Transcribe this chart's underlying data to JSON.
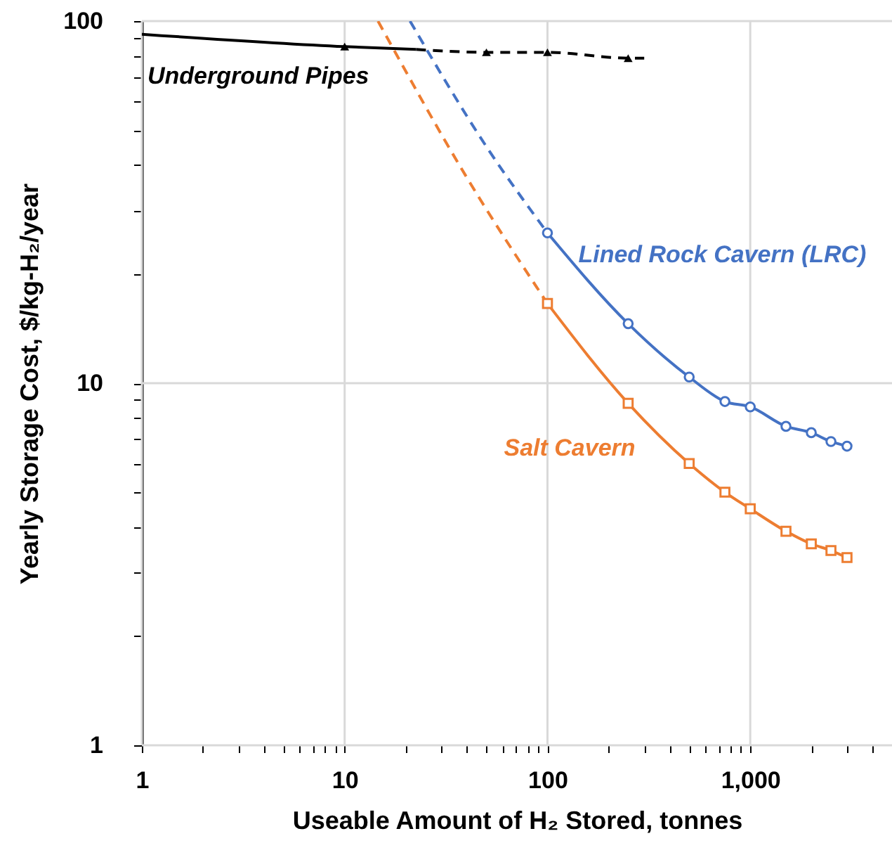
{
  "chart_data": {
    "type": "line",
    "xlabel": "Useable Amount of H₂ Stored, tonnes",
    "ylabel": "Yearly Storage Cost, $/kg-H₂/year",
    "log": "xy",
    "grid": true,
    "xlim": [
      1,
      5000
    ],
    "ylim": [
      1,
      100
    ],
    "xticks": [
      1,
      {
        "value": 2,
        "label": null
      },
      {
        "value": 3,
        "label": null
      },
      {
        "value": 4,
        "label": null
      },
      {
        "value": 5,
        "label": null
      },
      {
        "value": 6,
        "label": null
      },
      {
        "value": 7,
        "label": null
      },
      {
        "value": 8,
        "label": null
      },
      {
        "value": 9,
        "label": null
      },
      10,
      {
        "value": 20,
        "label": null
      },
      {
        "value": 30,
        "label": null
      },
      {
        "value": 40,
        "label": null
      },
      {
        "value": 50,
        "label": null
      },
      {
        "value": 60,
        "label": null
      },
      {
        "value": 70,
        "label": null
      },
      {
        "value": 80,
        "label": null
      },
      {
        "value": 90,
        "label": null
      },
      100,
      {
        "value": 200,
        "label": null
      },
      {
        "value": 300,
        "label": null
      },
      {
        "value": 400,
        "label": null
      },
      {
        "value": 500,
        "label": null
      },
      {
        "value": 600,
        "label": null
      },
      {
        "value": 700,
        "label": null
      },
      {
        "value": 800,
        "label": null
      },
      {
        "value": 900,
        "label": null
      },
      {
        "value": 1000,
        "label": "1,000"
      },
      {
        "value": 2000,
        "label": null
      },
      {
        "value": 3000,
        "label": null
      },
      {
        "value": 4000,
        "label": null
      },
      {
        "value": 5000,
        "label": null
      }
    ],
    "yticks": [
      1,
      {
        "value": 2,
        "label": null
      },
      {
        "value": 3,
        "label": null
      },
      {
        "value": 4,
        "label": null
      },
      {
        "value": 5,
        "label": null
      },
      {
        "value": 6,
        "label": null
      },
      {
        "value": 7,
        "label": null
      },
      {
        "value": 8,
        "label": null
      },
      {
        "value": 9,
        "label": null
      },
      10,
      {
        "value": 20,
        "label": null
      },
      {
        "value": 30,
        "label": null
      },
      {
        "value": 40,
        "label": null
      },
      {
        "value": 50,
        "label": null
      },
      {
        "value": 60,
        "label": null
      },
      {
        "value": 70,
        "label": null
      },
      {
        "value": 80,
        "label": null
      },
      {
        "value": 90,
        "label": null
      },
      100
    ],
    "series": [
      {
        "name": "Underground Pipes",
        "color": "#000000",
        "x": [
          1,
          10,
          22.5
        ],
        "values": [
          92,
          85,
          83.5
        ],
        "line_style": "solid",
        "marker": "none"
      },
      {
        "color": "#000000",
        "x": [
          22.5,
          50,
          100,
          250,
          300
        ],
        "values": [
          83.5,
          82,
          82,
          79,
          79
        ],
        "line_style": "dashed",
        "marker": "none"
      },
      {
        "type": "scatter",
        "color": "#000000",
        "x": [
          10,
          50,
          100,
          250
        ],
        "values": [
          85,
          82,
          82,
          79
        ],
        "marker": "triangle"
      },
      {
        "color": "#4472c4",
        "x": [
          21,
          50,
          100
        ],
        "values": [
          100,
          45,
          26
        ],
        "line_style": "dashed",
        "marker": "none"
      },
      {
        "name": "Lined Rock Cavern (LRC)",
        "color": "#4472c4",
        "x": [
          100,
          250,
          500,
          750,
          1000,
          1500,
          2000,
          2500,
          3000
        ],
        "values": [
          26,
          14.6,
          10.4,
          8.9,
          8.6,
          7.6,
          7.3,
          6.9,
          6.7
        ],
        "line_style": "solid",
        "marker": "circle"
      },
      {
        "color": "#ed7d31",
        "x": [
          14.6,
          40,
          100
        ],
        "values": [
          100,
          37,
          16.6
        ],
        "line_style": "dashed",
        "marker": "none"
      },
      {
        "name": "Salt Cavern",
        "color": "#ed7d31",
        "x": [
          100,
          250,
          500,
          750,
          1000,
          1500,
          2000,
          2500,
          3000
        ],
        "values": [
          16.6,
          8.8,
          6.0,
          5.0,
          4.5,
          3.9,
          3.6,
          3.45,
          3.3
        ],
        "line_style": "solid",
        "marker": "square"
      }
    ]
  }
}
